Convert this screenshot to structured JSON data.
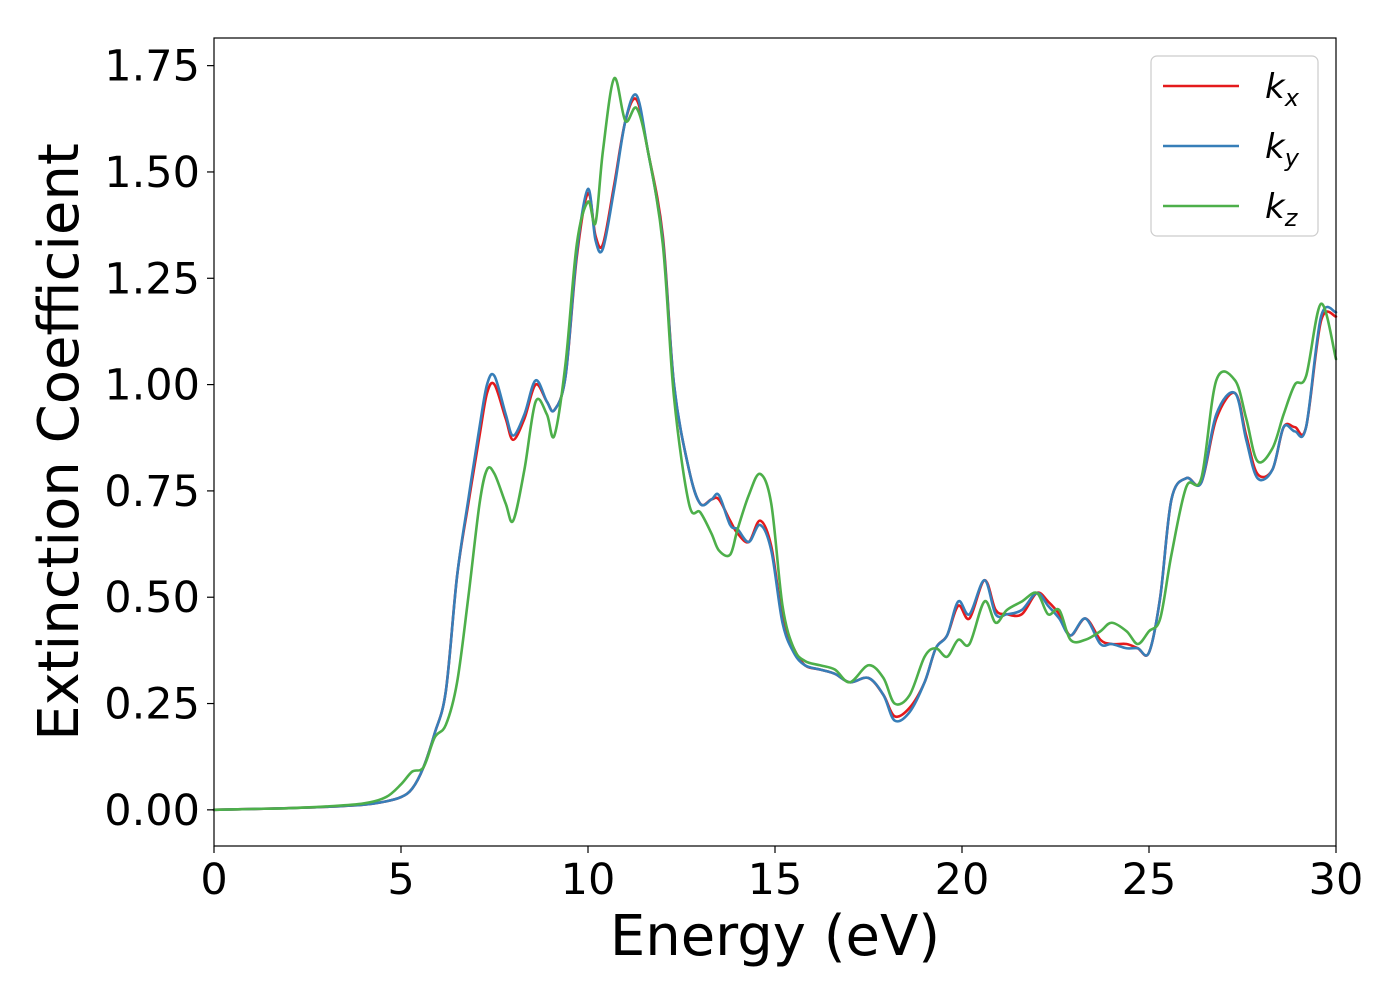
{
  "chart_data": {
    "type": "line",
    "title": "",
    "xlabel": "Energy (eV)",
    "ylabel": "Extinction Coefficient",
    "xlim": [
      0,
      30
    ],
    "ylim": [
      -0.085,
      1.815
    ],
    "xticks": [
      0,
      5,
      10,
      15,
      20,
      25,
      30
    ],
    "xtick_labels": [
      "0",
      "5",
      "10",
      "15",
      "20",
      "25",
      "30"
    ],
    "yticks": [
      0,
      0.25,
      0.5,
      0.75,
      1.0,
      1.25,
      1.5,
      1.75
    ],
    "ytick_labels": [
      "0.00",
      "0.25",
      "0.50",
      "0.75",
      "1.00",
      "1.25",
      "1.50",
      "1.75"
    ],
    "grid": false,
    "legend_position": "top-right",
    "series": [
      {
        "name": "k_x",
        "legend_main": "k",
        "legend_sub": "x",
        "color": "#e41a1c",
        "x": [
          0,
          1,
          2,
          3,
          4,
          4.6,
          5.0,
          5.3,
          5.6,
          5.9,
          6.2,
          6.5,
          6.8,
          7.1,
          7.3,
          7.5,
          7.8,
          8.0,
          8.3,
          8.6,
          8.9,
          9.1,
          9.4,
          9.7,
          10.0,
          10.2,
          10.4,
          10.7,
          11.0,
          11.3,
          11.6,
          12.0,
          12.3,
          12.7,
          13.0,
          13.3,
          13.5,
          13.8,
          14.0,
          14.3,
          14.6,
          14.9,
          15.2,
          15.5,
          15.8,
          16.2,
          16.6,
          17.0,
          17.5,
          17.9,
          18.2,
          18.6,
          19.0,
          19.3,
          19.6,
          19.9,
          20.2,
          20.6,
          20.9,
          21.2,
          21.6,
          22.0,
          22.3,
          22.6,
          22.9,
          23.3,
          23.7,
          24.0,
          24.4,
          24.7,
          25.0,
          25.3,
          25.6,
          26.0,
          26.4,
          26.8,
          27.3,
          27.6,
          27.9,
          28.3,
          28.6,
          28.9,
          29.2,
          29.6,
          30.0
        ],
        "y": [
          0,
          0.002,
          0.004,
          0.007,
          0.012,
          0.02,
          0.03,
          0.05,
          0.1,
          0.18,
          0.28,
          0.55,
          0.72,
          0.88,
          0.98,
          1.0,
          0.92,
          0.87,
          0.92,
          1.0,
          0.96,
          0.94,
          1.02,
          1.3,
          1.45,
          1.35,
          1.33,
          1.47,
          1.62,
          1.67,
          1.55,
          1.35,
          1.0,
          0.8,
          0.72,
          0.73,
          0.73,
          0.68,
          0.65,
          0.63,
          0.68,
          0.62,
          0.45,
          0.38,
          0.34,
          0.33,
          0.32,
          0.3,
          0.31,
          0.27,
          0.22,
          0.24,
          0.3,
          0.38,
          0.41,
          0.48,
          0.45,
          0.54,
          0.47,
          0.46,
          0.46,
          0.51,
          0.49,
          0.46,
          0.41,
          0.45,
          0.4,
          0.39,
          0.39,
          0.38,
          0.37,
          0.5,
          0.73,
          0.78,
          0.77,
          0.92,
          0.98,
          0.88,
          0.79,
          0.8,
          0.9,
          0.9,
          0.9,
          1.15,
          1.16
        ]
      },
      {
        "name": "k_y",
        "legend_main": "k",
        "legend_sub": "y",
        "color": "#377eb8",
        "x": [
          0,
          1,
          2,
          3,
          4,
          4.6,
          5.0,
          5.3,
          5.6,
          5.9,
          6.2,
          6.5,
          6.8,
          7.1,
          7.3,
          7.5,
          7.8,
          8.0,
          8.3,
          8.6,
          8.9,
          9.1,
          9.4,
          9.7,
          10.0,
          10.2,
          10.4,
          10.7,
          11.0,
          11.3,
          11.6,
          12.0,
          12.3,
          12.7,
          13.0,
          13.3,
          13.5,
          13.8,
          14.0,
          14.3,
          14.6,
          14.9,
          15.2,
          15.5,
          15.8,
          16.2,
          16.6,
          17.0,
          17.5,
          17.9,
          18.2,
          18.6,
          19.0,
          19.3,
          19.6,
          19.9,
          20.2,
          20.6,
          20.9,
          21.2,
          21.6,
          22.0,
          22.3,
          22.6,
          22.9,
          23.3,
          23.7,
          24.0,
          24.4,
          24.7,
          25.0,
          25.3,
          25.6,
          26.0,
          26.4,
          26.8,
          27.3,
          27.6,
          27.9,
          28.3,
          28.6,
          28.9,
          29.2,
          29.6,
          30.0
        ],
        "y": [
          0,
          0.002,
          0.004,
          0.007,
          0.012,
          0.02,
          0.03,
          0.05,
          0.1,
          0.18,
          0.28,
          0.55,
          0.73,
          0.9,
          1.0,
          1.02,
          0.93,
          0.88,
          0.93,
          1.01,
          0.96,
          0.94,
          1.02,
          1.31,
          1.46,
          1.34,
          1.32,
          1.46,
          1.62,
          1.68,
          1.55,
          1.34,
          1.0,
          0.8,
          0.72,
          0.73,
          0.74,
          0.67,
          0.66,
          0.63,
          0.67,
          0.61,
          0.44,
          0.37,
          0.34,
          0.33,
          0.32,
          0.3,
          0.31,
          0.27,
          0.21,
          0.23,
          0.3,
          0.38,
          0.41,
          0.49,
          0.46,
          0.54,
          0.46,
          0.46,
          0.47,
          0.51,
          0.48,
          0.45,
          0.41,
          0.45,
          0.39,
          0.39,
          0.38,
          0.38,
          0.37,
          0.5,
          0.73,
          0.78,
          0.77,
          0.93,
          0.98,
          0.87,
          0.78,
          0.8,
          0.9,
          0.89,
          0.9,
          1.16,
          1.17
        ]
      },
      {
        "name": "k_z",
        "legend_main": "k",
        "legend_sub": "z",
        "color": "#4daf4a",
        "x": [
          0,
          1,
          2,
          3,
          4,
          4.6,
          5.0,
          5.3,
          5.6,
          5.9,
          6.2,
          6.5,
          6.8,
          7.1,
          7.3,
          7.5,
          7.8,
          8.0,
          8.3,
          8.6,
          8.9,
          9.1,
          9.4,
          9.7,
          10.0,
          10.2,
          10.4,
          10.7,
          11.0,
          11.3,
          11.6,
          12.0,
          12.3,
          12.7,
          13.0,
          13.3,
          13.5,
          13.8,
          14.0,
          14.3,
          14.6,
          14.9,
          15.2,
          15.5,
          15.8,
          16.2,
          16.6,
          17.0,
          17.5,
          17.9,
          18.2,
          18.6,
          19.0,
          19.3,
          19.6,
          19.9,
          20.2,
          20.6,
          20.9,
          21.2,
          21.6,
          22.0,
          22.3,
          22.6,
          22.9,
          23.3,
          23.7,
          24.0,
          24.4,
          24.7,
          25.0,
          25.3,
          25.6,
          26.0,
          26.4,
          26.8,
          27.3,
          27.6,
          27.9,
          28.3,
          28.6,
          28.9,
          29.2,
          29.6,
          30.0
        ],
        "y": [
          0,
          0.002,
          0.004,
          0.008,
          0.015,
          0.03,
          0.06,
          0.09,
          0.1,
          0.17,
          0.2,
          0.3,
          0.5,
          0.72,
          0.8,
          0.79,
          0.72,
          0.68,
          0.8,
          0.96,
          0.93,
          0.88,
          1.05,
          1.33,
          1.43,
          1.38,
          1.55,
          1.72,
          1.62,
          1.65,
          1.55,
          1.33,
          0.97,
          0.72,
          0.7,
          0.65,
          0.61,
          0.6,
          0.66,
          0.74,
          0.79,
          0.72,
          0.48,
          0.38,
          0.35,
          0.34,
          0.33,
          0.3,
          0.34,
          0.31,
          0.25,
          0.27,
          0.36,
          0.38,
          0.36,
          0.4,
          0.39,
          0.49,
          0.44,
          0.47,
          0.49,
          0.51,
          0.46,
          0.47,
          0.4,
          0.4,
          0.42,
          0.44,
          0.42,
          0.39,
          0.42,
          0.45,
          0.6,
          0.76,
          0.78,
          1.01,
          1.01,
          0.92,
          0.82,
          0.85,
          0.93,
          1.0,
          1.02,
          1.19,
          1.06
        ]
      }
    ]
  }
}
